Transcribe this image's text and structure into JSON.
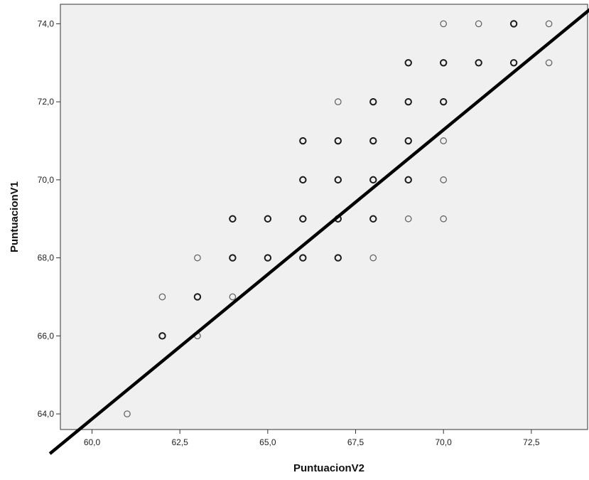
{
  "chart_data": {
    "type": "scatter",
    "xlabel": "PuntuacionV2",
    "ylabel": "PuntuacionV1",
    "xlim": [
      59.1,
      74.1
    ],
    "ylim": [
      63.6,
      74.5
    ],
    "x_ticks": [
      60.0,
      62.5,
      65.0,
      67.5,
      70.0,
      72.5
    ],
    "x_tick_labels": [
      "60,0",
      "62,5",
      "65,0",
      "67,5",
      "70,0",
      "72,5"
    ],
    "y_ticks": [
      64.0,
      66.0,
      68.0,
      70.0,
      72.0,
      74.0
    ],
    "y_tick_labels": [
      "64,0",
      "66,0",
      "68,0",
      "70,0",
      "72,0",
      "74,0"
    ],
    "grid": false,
    "legend": "none",
    "fit_line": {
      "slope": 0.741,
      "intercept": 19.41
    },
    "colors": {
      "plot_background": "#f0f0f0",
      "marker_light": "#666666",
      "marker_bold": "#1a1a1a",
      "fit_line": "#000000"
    },
    "points": [
      {
        "x": 61,
        "y": 64,
        "weight": "light"
      },
      {
        "x": 62,
        "y": 66,
        "weight": "bold"
      },
      {
        "x": 62,
        "y": 67,
        "weight": "light"
      },
      {
        "x": 63,
        "y": 66,
        "weight": "light"
      },
      {
        "x": 63,
        "y": 67,
        "weight": "bold"
      },
      {
        "x": 63,
        "y": 68,
        "weight": "light"
      },
      {
        "x": 64,
        "y": 67,
        "weight": "light"
      },
      {
        "x": 64,
        "y": 68,
        "weight": "bold"
      },
      {
        "x": 64,
        "y": 69,
        "weight": "bold"
      },
      {
        "x": 65,
        "y": 68,
        "weight": "bold"
      },
      {
        "x": 65,
        "y": 69,
        "weight": "bold"
      },
      {
        "x": 66,
        "y": 68,
        "weight": "bold"
      },
      {
        "x": 66,
        "y": 69,
        "weight": "bold"
      },
      {
        "x": 66,
        "y": 70,
        "weight": "bold"
      },
      {
        "x": 66,
        "y": 71,
        "weight": "bold"
      },
      {
        "x": 67,
        "y": 68,
        "weight": "bold"
      },
      {
        "x": 67,
        "y": 69,
        "weight": "bold"
      },
      {
        "x": 67,
        "y": 70,
        "weight": "bold"
      },
      {
        "x": 67,
        "y": 71,
        "weight": "bold"
      },
      {
        "x": 67,
        "y": 72,
        "weight": "light"
      },
      {
        "x": 68,
        "y": 68,
        "weight": "light"
      },
      {
        "x": 68,
        "y": 69,
        "weight": "bold"
      },
      {
        "x": 68,
        "y": 70,
        "weight": "bold"
      },
      {
        "x": 68,
        "y": 71,
        "weight": "bold"
      },
      {
        "x": 68,
        "y": 72,
        "weight": "bold"
      },
      {
        "x": 69,
        "y": 69,
        "weight": "light"
      },
      {
        "x": 69,
        "y": 70,
        "weight": "bold"
      },
      {
        "x": 69,
        "y": 71,
        "weight": "bold"
      },
      {
        "x": 69,
        "y": 72,
        "weight": "bold"
      },
      {
        "x": 69,
        "y": 73,
        "weight": "bold"
      },
      {
        "x": 70,
        "y": 69,
        "weight": "light"
      },
      {
        "x": 70,
        "y": 70,
        "weight": "light"
      },
      {
        "x": 70,
        "y": 71,
        "weight": "light"
      },
      {
        "x": 70,
        "y": 72,
        "weight": "bold"
      },
      {
        "x": 70,
        "y": 73,
        "weight": "bold"
      },
      {
        "x": 70,
        "y": 74,
        "weight": "light"
      },
      {
        "x": 71,
        "y": 73,
        "weight": "bold"
      },
      {
        "x": 71,
        "y": 74,
        "weight": "light"
      },
      {
        "x": 72,
        "y": 73,
        "weight": "bold"
      },
      {
        "x": 72,
        "y": 74,
        "weight": "bold"
      },
      {
        "x": 73,
        "y": 73,
        "weight": "light"
      },
      {
        "x": 73,
        "y": 74,
        "weight": "light"
      }
    ]
  }
}
